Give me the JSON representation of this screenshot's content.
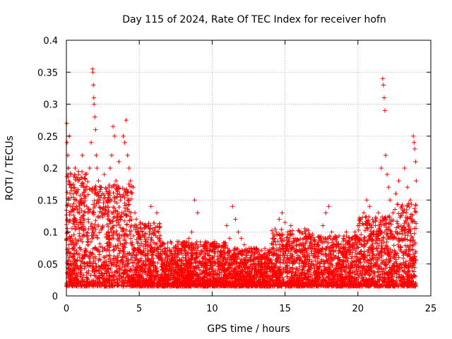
{
  "chart_data": {
    "type": "scatter",
    "title": "Day 115 of 2024, Rate Of TEC Index for receiver hofn",
    "xlabel": "GPS time / hours",
    "ylabel": "ROTI / TECUs",
    "xlim": [
      0,
      25
    ],
    "ylim": [
      0,
      0.4
    ],
    "x_ticks": [
      0,
      5,
      10,
      15,
      20,
      25
    ],
    "x_tick_labels": [
      "0",
      "5",
      "10",
      "15",
      "20",
      "25"
    ],
    "y_ticks": [
      0,
      0.05,
      0.1,
      0.15,
      0.2,
      0.25,
      0.3,
      0.35,
      0.4
    ],
    "y_tick_labels": [
      "0",
      "0.05",
      "0.1",
      "0.15",
      "0.2",
      "0.25",
      "0.3",
      "0.35",
      "0.4"
    ],
    "grid": true,
    "marker": "+",
    "marker_color": "#ff0000",
    "series": [
      {
        "name": "ROTI",
        "points": [
          [
            0.02,
            0.27
          ],
          [
            0.05,
            0.24
          ],
          [
            0.1,
            0.22
          ],
          [
            0.12,
            0.2
          ],
          [
            0.15,
            0.18
          ],
          [
            0.2,
            0.25
          ],
          [
            0.25,
            0.16
          ],
          [
            0.3,
            0.19
          ],
          [
            0.05,
            0.12
          ],
          [
            0.1,
            0.1
          ],
          [
            0.15,
            0.08
          ],
          [
            0.2,
            0.06
          ],
          [
            0.3,
            0.09
          ],
          [
            0.4,
            0.14
          ],
          [
            0.5,
            0.12
          ],
          [
            0.6,
            0.2
          ],
          [
            0.7,
            0.16
          ],
          [
            0.8,
            0.18
          ],
          [
            0.9,
            0.13
          ],
          [
            1.0,
            0.15
          ],
          [
            1.1,
            0.22
          ],
          [
            1.2,
            0.17
          ],
          [
            1.3,
            0.19
          ],
          [
            1.4,
            0.14
          ],
          [
            1.5,
            0.12
          ],
          [
            1.6,
            0.2
          ],
          [
            1.7,
            0.24
          ],
          [
            1.8,
            0.355
          ],
          [
            1.82,
            0.35
          ],
          [
            1.85,
            0.33
          ],
          [
            1.88,
            0.31
          ],
          [
            1.9,
            0.3
          ],
          [
            1.95,
            0.28
          ],
          [
            2.0,
            0.26
          ],
          [
            2.05,
            0.22
          ],
          [
            2.1,
            0.2
          ],
          [
            2.2,
            0.18
          ],
          [
            2.3,
            0.15
          ],
          [
            2.4,
            0.17
          ],
          [
            2.5,
            0.16
          ],
          [
            2.6,
            0.19
          ],
          [
            2.7,
            0.14
          ],
          [
            2.8,
            0.13
          ],
          [
            2.9,
            0.16
          ],
          [
            3.0,
            0.2
          ],
          [
            3.1,
            0.22
          ],
          [
            3.2,
            0.265
          ],
          [
            3.3,
            0.25
          ],
          [
            3.4,
            0.18
          ],
          [
            3.5,
            0.16
          ],
          [
            3.6,
            0.21
          ],
          [
            3.7,
            0.15
          ],
          [
            3.8,
            0.13
          ],
          [
            3.9,
            0.25
          ],
          [
            4.0,
            0.24
          ],
          [
            4.1,
            0.275
          ],
          [
            4.2,
            0.22
          ],
          [
            4.3,
            0.2
          ],
          [
            4.4,
            0.18
          ],
          [
            4.5,
            0.16
          ],
          [
            4.6,
            0.17
          ],
          [
            4.7,
            0.13
          ],
          [
            4.8,
            0.12
          ],
          [
            4.9,
            0.1
          ],
          [
            5.0,
            0.09
          ],
          [
            5.2,
            0.1
          ],
          [
            5.4,
            0.08
          ],
          [
            5.6,
            0.11
          ],
          [
            5.8,
            0.14
          ],
          [
            6.0,
            0.1
          ],
          [
            6.2,
            0.13
          ],
          [
            6.4,
            0.09
          ],
          [
            6.6,
            0.07
          ],
          [
            6.8,
            0.06
          ],
          [
            7.0,
            0.05
          ],
          [
            7.2,
            0.07
          ],
          [
            7.4,
            0.05
          ],
          [
            7.6,
            0.06
          ],
          [
            7.8,
            0.04
          ],
          [
            8.0,
            0.06
          ],
          [
            8.2,
            0.08
          ],
          [
            8.4,
            0.09
          ],
          [
            8.6,
            0.1
          ],
          [
            8.8,
            0.15
          ],
          [
            9.0,
            0.13
          ],
          [
            9.2,
            0.08
          ],
          [
            9.4,
            0.06
          ],
          [
            9.6,
            0.05
          ],
          [
            9.8,
            0.07
          ],
          [
            10.0,
            0.06
          ],
          [
            10.2,
            0.05
          ],
          [
            10.4,
            0.04
          ],
          [
            10.6,
            0.05
          ],
          [
            10.8,
            0.06
          ],
          [
            11.0,
            0.11
          ],
          [
            11.2,
            0.09
          ],
          [
            11.4,
            0.14
          ],
          [
            11.6,
            0.12
          ],
          [
            11.8,
            0.1
          ],
          [
            12.0,
            0.09
          ],
          [
            12.2,
            0.08
          ],
          [
            12.4,
            0.07
          ],
          [
            12.6,
            0.06
          ],
          [
            12.8,
            0.05
          ],
          [
            13.0,
            0.04
          ],
          [
            13.2,
            0.05
          ],
          [
            13.4,
            0.04
          ],
          [
            13.6,
            0.06
          ],
          [
            13.8,
            0.05
          ],
          [
            14.0,
            0.07
          ],
          [
            14.2,
            0.09
          ],
          [
            14.4,
            0.1
          ],
          [
            14.6,
            0.12
          ],
          [
            14.8,
            0.13
          ],
          [
            15.0,
            0.115
          ],
          [
            15.2,
            0.1
          ],
          [
            15.4,
            0.11
          ],
          [
            15.6,
            0.09
          ],
          [
            15.8,
            0.08
          ],
          [
            16.0,
            0.1
          ],
          [
            16.2,
            0.07
          ],
          [
            16.4,
            0.06
          ],
          [
            16.6,
            0.05
          ],
          [
            16.8,
            0.07
          ],
          [
            17.0,
            0.06
          ],
          [
            17.2,
            0.08
          ],
          [
            17.4,
            0.09
          ],
          [
            17.6,
            0.11
          ],
          [
            17.8,
            0.13
          ],
          [
            18.0,
            0.14
          ],
          [
            18.2,
            0.1
          ],
          [
            18.4,
            0.09
          ],
          [
            18.6,
            0.08
          ],
          [
            18.8,
            0.07
          ],
          [
            19.0,
            0.09
          ],
          [
            19.2,
            0.1
          ],
          [
            19.4,
            0.08
          ],
          [
            19.6,
            0.09
          ],
          [
            19.8,
            0.1
          ],
          [
            20.0,
            0.11
          ],
          [
            20.2,
            0.12
          ],
          [
            20.4,
            0.13
          ],
          [
            20.6,
            0.15
          ],
          [
            20.8,
            0.14
          ],
          [
            21.0,
            0.12
          ],
          [
            21.2,
            0.11
          ],
          [
            21.4,
            0.13
          ],
          [
            21.6,
            0.2
          ],
          [
            21.7,
            0.34
          ],
          [
            21.75,
            0.33
          ],
          [
            21.8,
            0.31
          ],
          [
            21.85,
            0.29
          ],
          [
            21.9,
            0.22
          ],
          [
            22.0,
            0.19
          ],
          [
            22.1,
            0.17
          ],
          [
            22.2,
            0.15
          ],
          [
            22.4,
            0.13
          ],
          [
            22.6,
            0.16
          ],
          [
            22.8,
            0.18
          ],
          [
            23.0,
            0.14
          ],
          [
            23.2,
            0.2
          ],
          [
            23.4,
            0.17
          ],
          [
            23.6,
            0.15
          ],
          [
            23.8,
            0.25
          ],
          [
            23.85,
            0.24
          ],
          [
            23.9,
            0.23
          ],
          [
            23.95,
            0.21
          ],
          [
            24.0,
            0.18
          ]
        ]
      }
    ]
  }
}
